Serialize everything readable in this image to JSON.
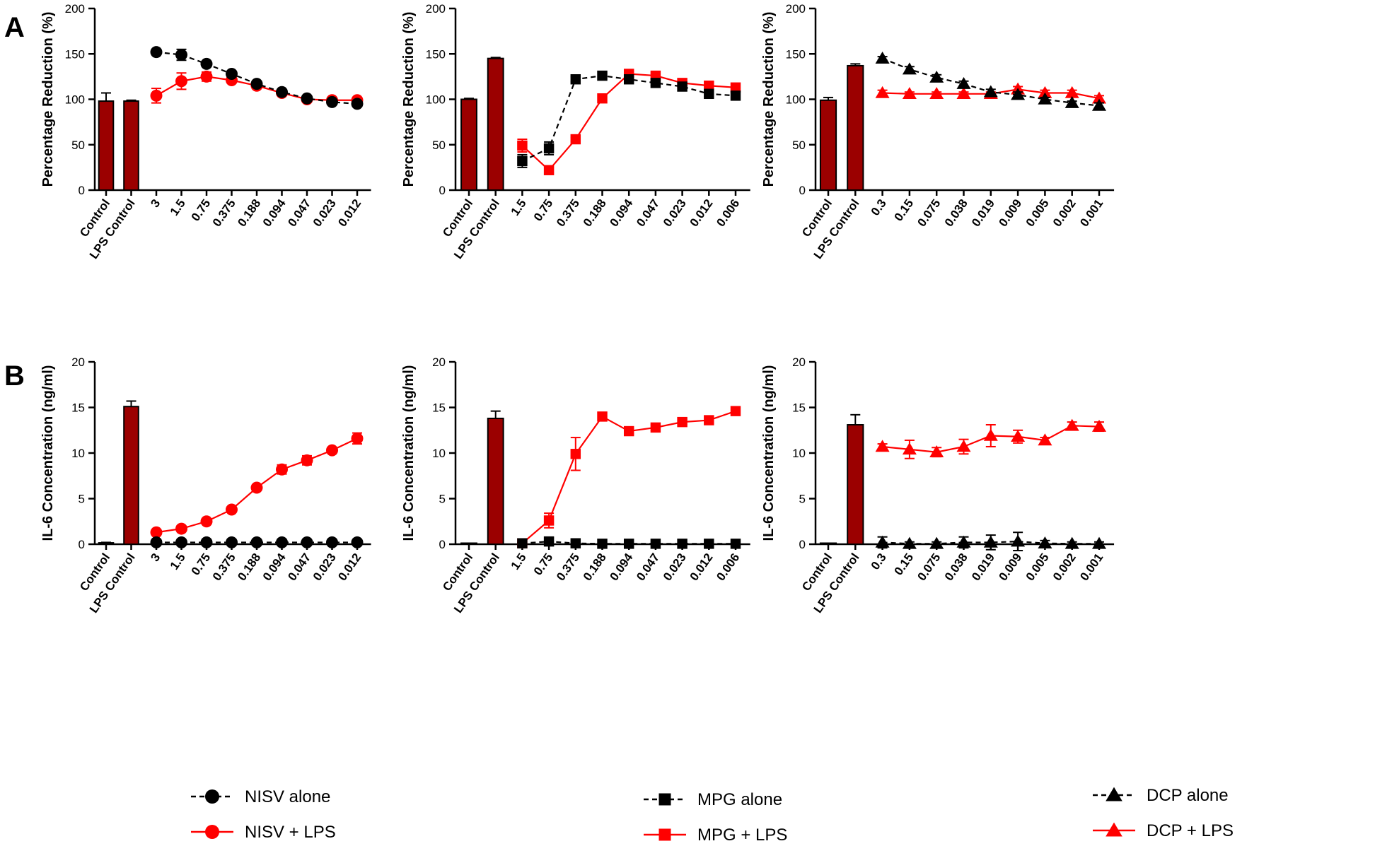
{
  "panel_labels": {
    "A": "A",
    "B": "B"
  },
  "colors": {
    "bar": "#9b0000",
    "alone": "#000000",
    "lps": "#ff0000"
  },
  "chart_data": [
    {
      "type": "bar+line",
      "panel": "A",
      "compound": "NISV",
      "ylabel": "Percentage Reduction (%)",
      "ylim": [
        0,
        200
      ],
      "yticks": [
        0,
        50,
        100,
        150,
        200
      ],
      "marker": "circle",
      "bar_categories": [
        "Control",
        "LPS Control"
      ],
      "bar_values": [
        98,
        98
      ],
      "bar_errors": [
        9,
        1
      ],
      "x": [
        "3",
        "1.5",
        "0.75",
        "0.375",
        "0.188",
        "0.094",
        "0.047",
        "0.023",
        "0.012"
      ],
      "series": [
        {
          "name": "NISV alone",
          "values": [
            152,
            149,
            139,
            128,
            117,
            108,
            101,
            97,
            95
          ],
          "errors": [
            2,
            6,
            3,
            2,
            3,
            2,
            2,
            2,
            3
          ]
        },
        {
          "name": "NISV + LPS",
          "values": [
            104,
            120,
            125,
            121,
            115,
            107,
            100,
            99,
            99
          ],
          "errors": [
            8,
            9,
            5,
            3,
            3,
            3,
            3,
            2,
            2
          ]
        }
      ]
    },
    {
      "type": "bar+line",
      "panel": "A",
      "compound": "MPG",
      "ylabel": "Percentage Reduction (%)",
      "ylim": [
        0,
        200
      ],
      "yticks": [
        0,
        50,
        100,
        150,
        200
      ],
      "ytick_labels": [
        "0",
        "50",
        "100",
        "150",
        "200"
      ],
      "marker": "square",
      "bar_categories": [
        "Control",
        "LPS Control"
      ],
      "bar_values": [
        100,
        145
      ],
      "bar_errors": [
        1,
        1
      ],
      "x": [
        "1.5",
        "0.75",
        "0.375",
        "0.188",
        "0.094",
        "0.047",
        "0.023",
        "0.012",
        "0.006"
      ],
      "series": [
        {
          "name": "MPG alone",
          "values": [
            32,
            46,
            122,
            126,
            122,
            118,
            114,
            106,
            104
          ],
          "errors": [
            7,
            7,
            3,
            2,
            3,
            3,
            3,
            3,
            2
          ]
        },
        {
          "name": "MPG + LPS",
          "values": [
            49,
            22,
            56,
            101,
            128,
            126,
            118,
            115,
            113
          ],
          "errors": [
            7,
            3,
            2,
            2,
            3,
            3,
            2,
            2,
            2
          ]
        }
      ]
    },
    {
      "type": "bar+line",
      "panel": "A",
      "compound": "DCP",
      "ylabel": "Percentage Reduction (%)",
      "ylim": [
        0,
        200
      ],
      "yticks": [
        0,
        50,
        100,
        150,
        200
      ],
      "marker": "triangle",
      "bar_categories": [
        "Control",
        "LPS Control"
      ],
      "bar_values": [
        99,
        137
      ],
      "bar_errors": [
        3,
        2
      ],
      "x": [
        "0.3",
        "0.15",
        "0.075",
        "0.038",
        "0.019",
        "0.009",
        "0.005",
        "0.002",
        "0.001"
      ],
      "series": [
        {
          "name": "DCP alone",
          "values": [
            145,
            133,
            124,
            117,
            108,
            105,
            100,
            96,
            93
          ],
          "errors": [
            2,
            3,
            3,
            3,
            3,
            3,
            2,
            2,
            3
          ]
        },
        {
          "name": "DCP + LPS",
          "values": [
            107,
            106,
            106,
            106,
            106,
            111,
            107,
            107,
            101
          ],
          "errors": [
            3,
            2,
            2,
            2,
            2,
            3,
            3,
            3,
            3
          ]
        }
      ]
    },
    {
      "type": "bar+line",
      "panel": "B",
      "compound": "NISV",
      "ylabel": "IL-6 Concentration (ng/ml)",
      "ylim": [
        0,
        20
      ],
      "yticks": [
        0,
        5,
        10,
        15,
        20
      ],
      "marker": "circle",
      "bar_categories": [
        "Control",
        "LPS Control"
      ],
      "bar_values": [
        0.15,
        15.1
      ],
      "bar_errors": [
        0.05,
        0.6
      ],
      "x": [
        "3",
        "1.5",
        "0.75",
        "0.375",
        "0.188",
        "0.094",
        "0.047",
        "0.023",
        "0.012"
      ],
      "series": [
        {
          "name": "NISV alone",
          "values": [
            0.2,
            0.2,
            0.2,
            0.2,
            0.2,
            0.2,
            0.2,
            0.2,
            0.2
          ],
          "errors": [
            0.05,
            0.05,
            0.05,
            0.05,
            0.05,
            0.05,
            0.05,
            0.05,
            0.05
          ]
        },
        {
          "name": "NISV + LPS",
          "values": [
            1.3,
            1.7,
            2.5,
            3.8,
            6.2,
            8.2,
            9.2,
            10.3,
            11.6
          ],
          "errors": [
            0.2,
            0.2,
            0.2,
            0.3,
            0.3,
            0.5,
            0.5,
            0.3,
            0.6
          ]
        }
      ]
    },
    {
      "type": "bar+line",
      "panel": "B",
      "compound": "MPG",
      "ylabel": "IL-6 Concentration (ng/ml)",
      "ylim": [
        0,
        20
      ],
      "yticks": [
        0,
        5,
        10,
        15,
        20
      ],
      "marker": "square",
      "bar_categories": [
        "Control",
        "LPS Control"
      ],
      "bar_values": [
        0.05,
        13.8
      ],
      "bar_errors": [
        0.05,
        0.8
      ],
      "x": [
        "1.5",
        "0.75",
        "0.375",
        "0.188",
        "0.094",
        "0.047",
        "0.023",
        "0.012",
        "0.006"
      ],
      "series": [
        {
          "name": "MPG alone",
          "values": [
            0.1,
            0.3,
            0.1,
            0.05,
            0.05,
            0.05,
            0.05,
            0.05,
            0.05
          ],
          "errors": [
            0.1,
            0.4,
            0.1,
            0.05,
            0.05,
            0.05,
            0.05,
            0.05,
            0.05
          ]
        },
        {
          "name": "MPG + LPS",
          "values": [
            0.1,
            2.6,
            9.9,
            14.0,
            12.4,
            12.8,
            13.4,
            13.6,
            14.6
          ],
          "errors": [
            0.1,
            0.8,
            1.8,
            0.2,
            0.3,
            0.3,
            0.3,
            0.3,
            0.3
          ]
        }
      ]
    },
    {
      "type": "bar+line",
      "panel": "B",
      "compound": "DCP",
      "ylabel": "IL-6 Concentration (ng/ml)",
      "ylim": [
        0,
        20
      ],
      "yticks": [
        0,
        5,
        10,
        15,
        20
      ],
      "ytick_labels": [
        "0",
        "5",
        "10",
        "15",
        "20"
      ],
      "marker": "triangle",
      "bar_categories": [
        "Control",
        "LPS Control"
      ],
      "bar_values": [
        0.05,
        13.1
      ],
      "bar_errors": [
        0.05,
        1.1
      ],
      "x": [
        "0.3",
        "0.15",
        "0.075",
        "0.038",
        "0.019",
        "0.009",
        "0.005",
        "0.002",
        "0.001"
      ],
      "series": [
        {
          "name": "DCP alone",
          "values": [
            0.2,
            0.05,
            0.05,
            0.2,
            0.2,
            0.3,
            0.1,
            0.05,
            0.05
          ],
          "errors": [
            0.6,
            0.2,
            0.2,
            0.6,
            0.8,
            1.0,
            0.3,
            0.2,
            0.2
          ]
        },
        {
          "name": "DCP + LPS",
          "values": [
            10.7,
            10.4,
            10.1,
            10.7,
            11.9,
            11.8,
            11.4,
            13.0,
            12.9
          ],
          "errors": [
            0.3,
            1.0,
            0.5,
            0.8,
            1.2,
            0.7,
            0.3,
            0.4,
            0.5
          ]
        }
      ]
    }
  ],
  "legends": [
    {
      "marker": "circle",
      "items": [
        "NISV alone",
        "NISV + LPS"
      ]
    },
    {
      "marker": "square",
      "items": [
        "MPG alone",
        "MPG + LPS"
      ]
    },
    {
      "marker": "triangle",
      "items": [
        "DCP alone",
        "DCP + LPS"
      ]
    }
  ]
}
